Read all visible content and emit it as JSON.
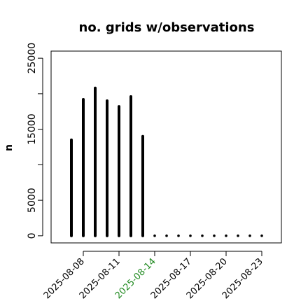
{
  "chart_data": {
    "type": "bar",
    "title": "no. grids w/observations",
    "xlabel": "",
    "ylabel": "n",
    "x": [
      "2025-08-07",
      "2025-08-08",
      "2025-08-09",
      "2025-08-10",
      "2025-08-11",
      "2025-08-12",
      "2025-08-13",
      "2025-08-14",
      "2025-08-15",
      "2025-08-16",
      "2025-08-17",
      "2025-08-18",
      "2025-08-19",
      "2025-08-20",
      "2025-08-21",
      "2025-08-22",
      "2025-08-23"
    ],
    "values": [
      13500,
      19200,
      20800,
      19000,
      18200,
      19600,
      14000,
      0,
      0,
      0,
      0,
      0,
      0,
      0,
      0,
      0,
      0
    ],
    "ylim": [
      -1000,
      26000
    ],
    "yticks": [
      0,
      5000,
      10000,
      15000,
      20000,
      25000
    ],
    "ytick_labels": [
      "0",
      "5000",
      "",
      "15000",
      "",
      "25000"
    ],
    "xticks": [
      "2025-08-08",
      "2025-08-11",
      "2025-08-14",
      "2025-08-17",
      "2025-08-20",
      "2025-08-23"
    ],
    "highlighted_tick": "2025-08-14",
    "highlight_color": "#228b22",
    "bar_color": "#000000",
    "grid": false
  }
}
